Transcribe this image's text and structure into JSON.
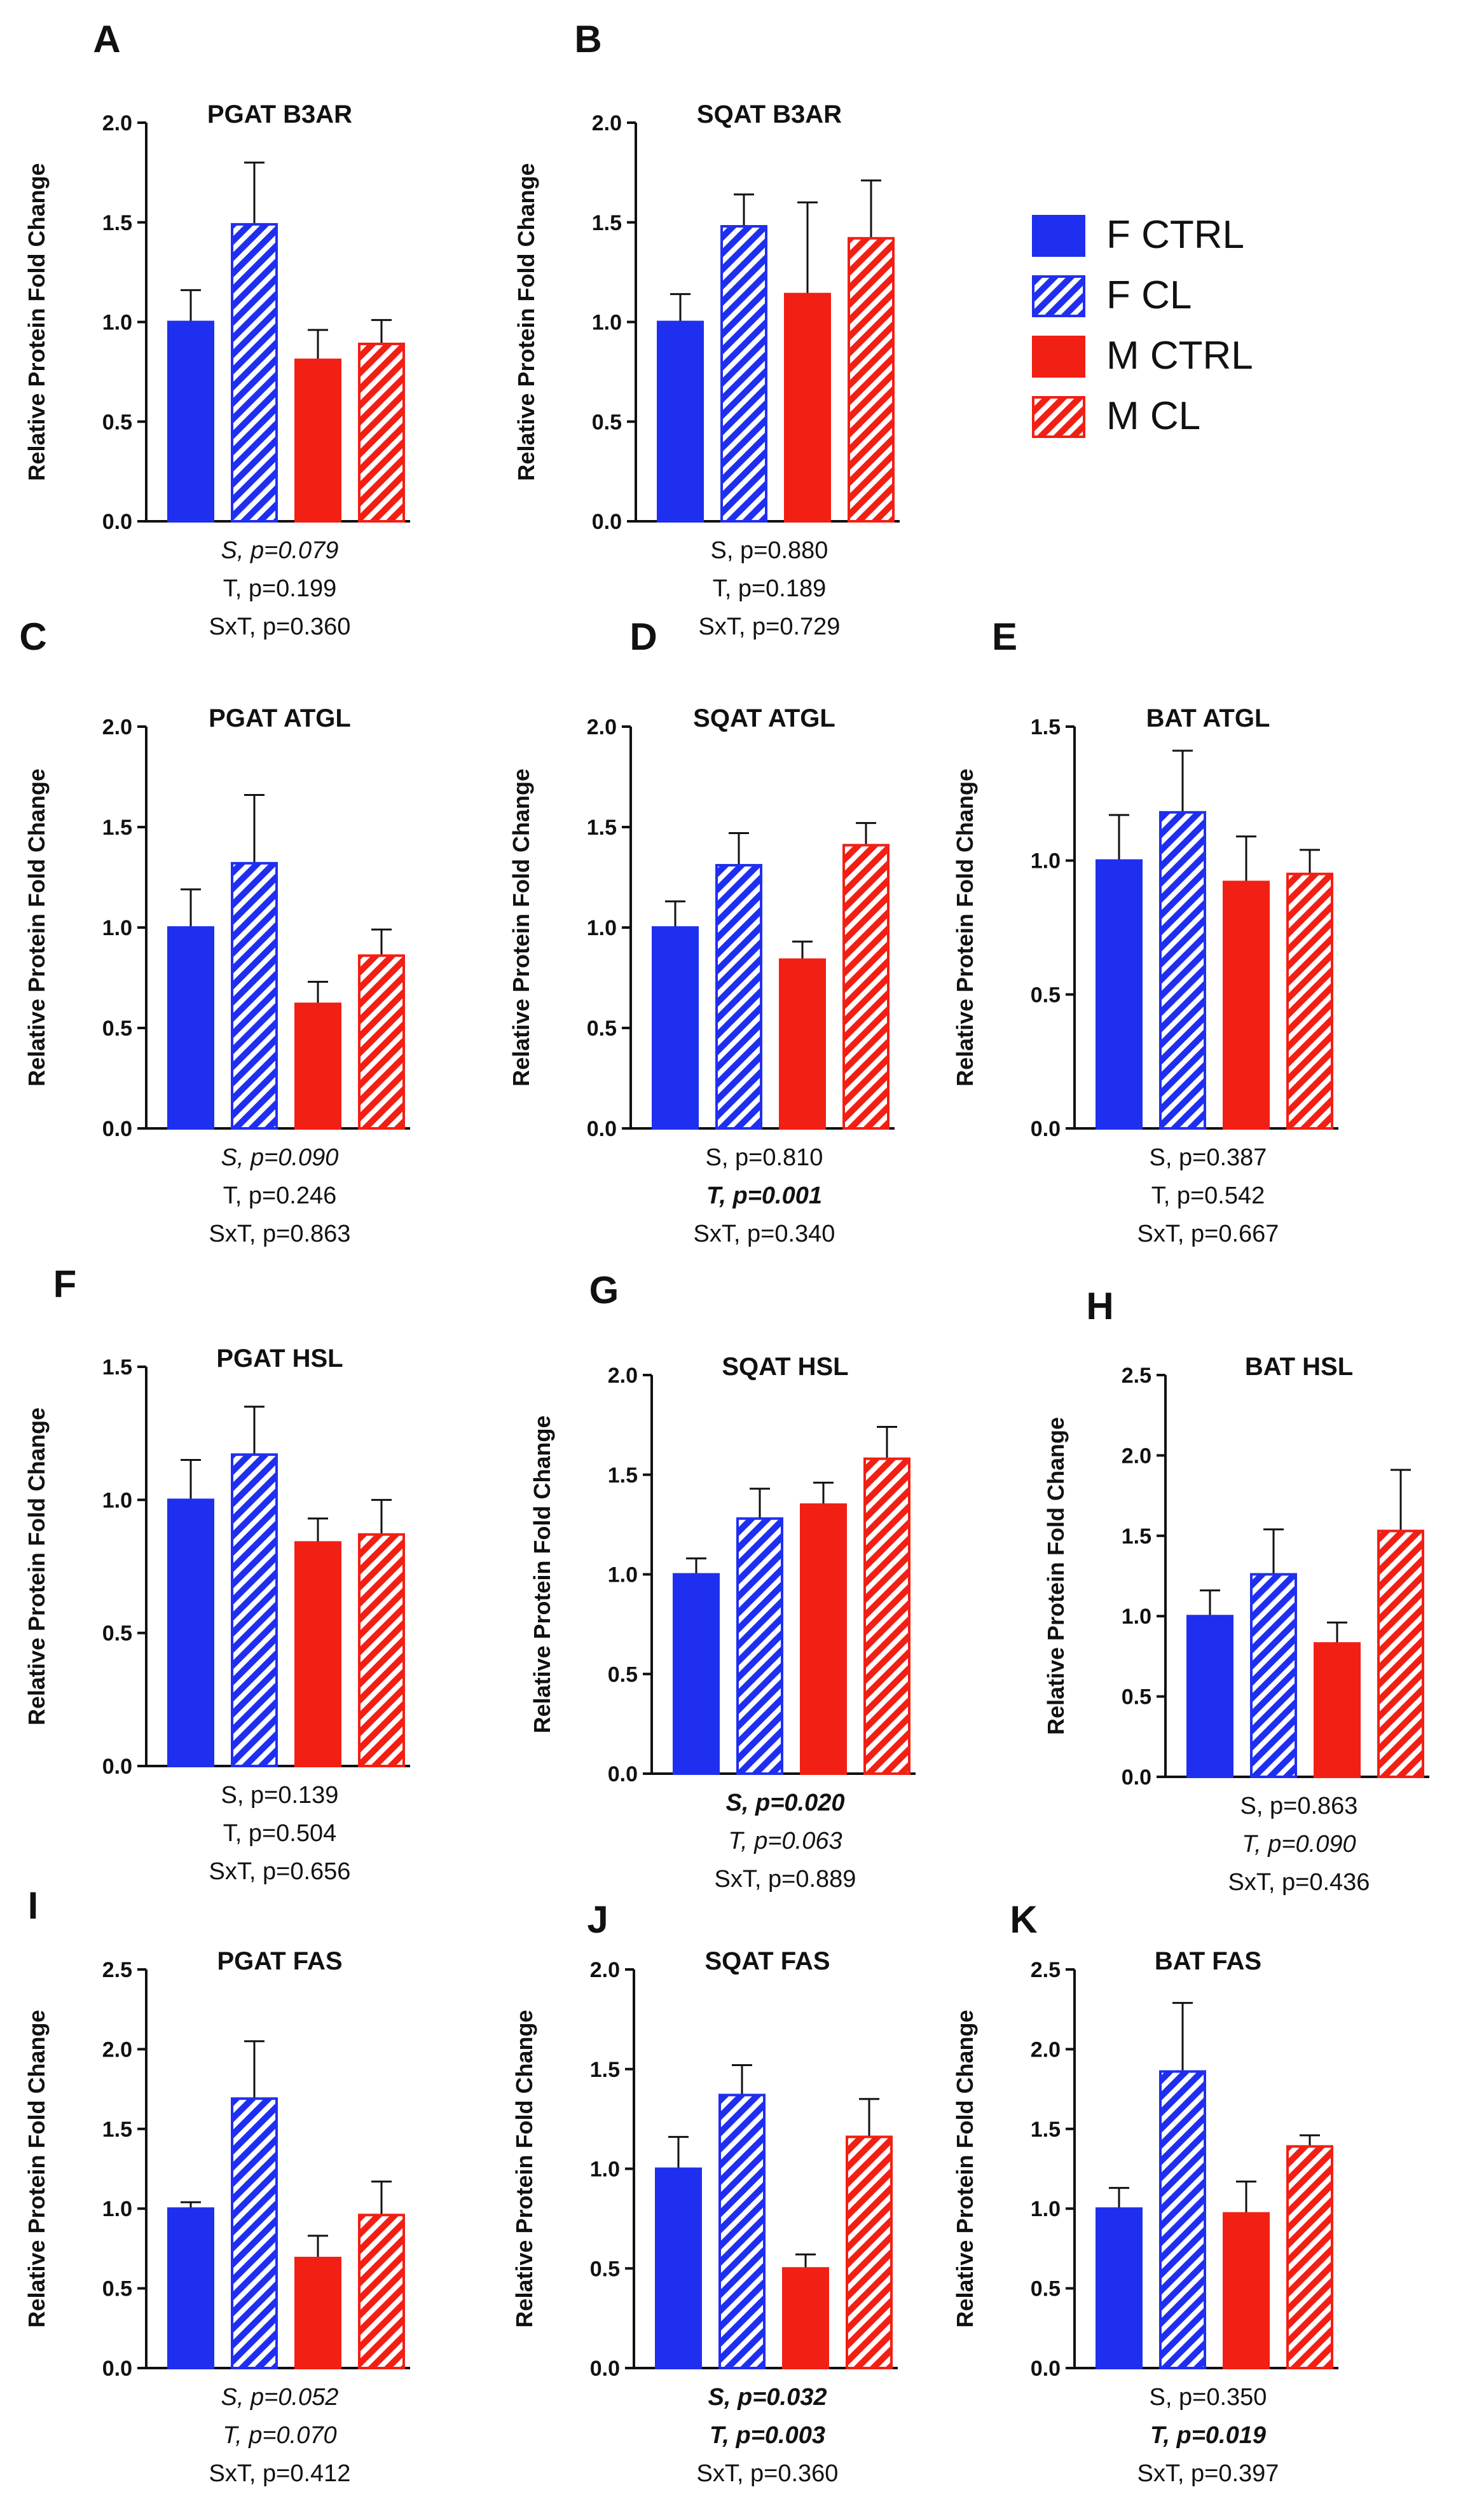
{
  "colors": {
    "f_ctrl": "#1f2ff0",
    "m_ctrl": "#f21f14",
    "axis": "#111111",
    "text": "#111111"
  },
  "legend": {
    "entries": [
      {
        "label": "F CTRL",
        "color": "#1f2ff0",
        "hatched": false
      },
      {
        "label": "F CL",
        "color": "#1f2ff0",
        "hatched": true
      },
      {
        "label": "M CTRL",
        "color": "#f21f14",
        "hatched": false
      },
      {
        "label": "M CL",
        "color": "#f21f14",
        "hatched": true
      }
    ]
  },
  "chart_data": [
    {
      "panel": "A",
      "type": "bar",
      "title": "PGAT B3AR",
      "ylabel": "Relative Protein Fold Change",
      "categories": [
        "F CTRL",
        "F CL",
        "M CTRL",
        "M CL"
      ],
      "values": [
        1.0,
        1.49,
        0.81,
        0.89
      ],
      "errors": [
        0.16,
        0.31,
        0.15,
        0.12
      ],
      "ylim": [
        0,
        2.0
      ],
      "yticks": [
        "0.0",
        "0.5",
        "1.0",
        "1.5",
        "2.0"
      ],
      "stats": [
        {
          "text": "S, p=0.079",
          "style": "italic"
        },
        {
          "text": "T, p=0.199",
          "style": "normal"
        },
        {
          "text": "SxT, p=0.360",
          "style": "normal"
        }
      ]
    },
    {
      "panel": "B",
      "type": "bar",
      "title": "SQAT B3AR",
      "ylabel": "Relative Protein Fold Change",
      "categories": [
        "F CTRL",
        "F CL",
        "M CTRL",
        "M CL"
      ],
      "values": [
        1.0,
        1.48,
        1.14,
        1.42
      ],
      "errors": [
        0.14,
        0.16,
        0.46,
        0.29
      ],
      "ylim": [
        0,
        2.0
      ],
      "yticks": [
        "0.0",
        "0.5",
        "1.0",
        "1.5",
        "2.0"
      ],
      "stats": [
        {
          "text": "S, p=0.880",
          "style": "normal"
        },
        {
          "text": "T, p=0.189",
          "style": "normal"
        },
        {
          "text": "SxT, p=0.729",
          "style": "normal"
        }
      ]
    },
    {
      "panel": "C",
      "type": "bar",
      "title": "PGAT ATGL",
      "ylabel": "Relative Protein Fold Change",
      "categories": [
        "F CTRL",
        "F CL",
        "M CTRL",
        "M CL"
      ],
      "values": [
        1.0,
        1.32,
        0.62,
        0.86
      ],
      "errors": [
        0.19,
        0.34,
        0.11,
        0.13
      ],
      "ylim": [
        0,
        2.0
      ],
      "yticks": [
        "0.0",
        "0.5",
        "1.0",
        "1.5",
        "2.0"
      ],
      "stats": [
        {
          "text": "S, p=0.090",
          "style": "italic"
        },
        {
          "text": "T, p=0.246",
          "style": "normal"
        },
        {
          "text": "SxT, p=0.863",
          "style": "normal"
        }
      ]
    },
    {
      "panel": "D",
      "type": "bar",
      "title": "SQAT ATGL",
      "ylabel": "Relative Protein Fold Change",
      "categories": [
        "F CTRL",
        "F CL",
        "M CTRL",
        "M CL"
      ],
      "values": [
        1.0,
        1.31,
        0.84,
        1.41
      ],
      "errors": [
        0.13,
        0.16,
        0.09,
        0.11
      ],
      "ylim": [
        0,
        2.0
      ],
      "yticks": [
        "0.0",
        "0.5",
        "1.0",
        "1.5",
        "2.0"
      ],
      "stats": [
        {
          "text": "S, p=0.810",
          "style": "normal"
        },
        {
          "text": "T, p=0.001",
          "style": "bold-italic"
        },
        {
          "text": "SxT, p=0.340",
          "style": "normal"
        }
      ]
    },
    {
      "panel": "E",
      "type": "bar",
      "title": "BAT ATGL",
      "ylabel": "Relative Protein Fold Change",
      "categories": [
        "F CTRL",
        "F CL",
        "M CTRL",
        "M CL"
      ],
      "values": [
        1.0,
        1.18,
        0.92,
        0.95
      ],
      "errors": [
        0.17,
        0.23,
        0.17,
        0.09
      ],
      "ylim": [
        0,
        1.5
      ],
      "yticks": [
        "0.0",
        "0.5",
        "1.0",
        "1.5"
      ],
      "stats": [
        {
          "text": "S, p=0.387",
          "style": "normal"
        },
        {
          "text": "T, p=0.542",
          "style": "normal"
        },
        {
          "text": "SxT, p=0.667",
          "style": "normal"
        }
      ]
    },
    {
      "panel": "F",
      "type": "bar",
      "title": "PGAT HSL",
      "ylabel": "Relative Protein Fold Change",
      "categories": [
        "F CTRL",
        "F CL",
        "M CTRL",
        "M CL"
      ],
      "values": [
        1.0,
        1.17,
        0.84,
        0.87
      ],
      "errors": [
        0.15,
        0.18,
        0.09,
        0.13
      ],
      "ylim": [
        0,
        1.5
      ],
      "yticks": [
        "0.0",
        "0.5",
        "1.0",
        "1.5"
      ],
      "stats": [
        {
          "text": "S, p=0.139",
          "style": "normal"
        },
        {
          "text": "T, p=0.504",
          "style": "normal"
        },
        {
          "text": "SxT, p=0.656",
          "style": "normal"
        }
      ]
    },
    {
      "panel": "G",
      "type": "bar",
      "title": "SQAT HSL",
      "ylabel": "Relative Protein Fold Change",
      "categories": [
        "F CTRL",
        "F CL",
        "M CTRL",
        "M CL"
      ],
      "values": [
        1.0,
        1.28,
        1.35,
        1.58
      ],
      "errors": [
        0.08,
        0.15,
        0.11,
        0.16
      ],
      "ylim": [
        0,
        2.0
      ],
      "yticks": [
        "0.0",
        "0.5",
        "1.0",
        "1.5",
        "2.0"
      ],
      "stats": [
        {
          "text": "S, p=0.020",
          "style": "bold-italic"
        },
        {
          "text": "T, p=0.063",
          "style": "italic"
        },
        {
          "text": "SxT, p=0.889",
          "style": "normal"
        }
      ]
    },
    {
      "panel": "H",
      "type": "bar",
      "title": "BAT HSL",
      "ylabel": "Relative Protein Fold Change",
      "categories": [
        "F CTRL",
        "F CL",
        "M CTRL",
        "M CL"
      ],
      "values": [
        1.0,
        1.26,
        0.83,
        1.53
      ],
      "errors": [
        0.16,
        0.28,
        0.13,
        0.38
      ],
      "ylim": [
        0,
        2.5
      ],
      "yticks": [
        "0.0",
        "0.5",
        "1.0",
        "1.5",
        "2.0",
        "2.5"
      ],
      "stats": [
        {
          "text": "S, p=0.863",
          "style": "normal"
        },
        {
          "text": "T, p=0.090",
          "style": "italic"
        },
        {
          "text": "SxT, p=0.436",
          "style": "normal"
        }
      ]
    },
    {
      "panel": "I",
      "type": "bar",
      "title": "PGAT FAS",
      "ylabel": "Relative Protein Fold Change",
      "categories": [
        "F CTRL",
        "F CL",
        "M CTRL",
        "M CL"
      ],
      "values": [
        1.0,
        1.69,
        0.69,
        0.96
      ],
      "errors": [
        0.04,
        0.36,
        0.14,
        0.21
      ],
      "ylim": [
        0,
        2.5
      ],
      "yticks": [
        "0.0",
        "0.5",
        "1.0",
        "1.5",
        "2.0",
        "2.5"
      ],
      "stats": [
        {
          "text": "S, p=0.052",
          "style": "italic"
        },
        {
          "text": "T, p=0.070",
          "style": "italic"
        },
        {
          "text": "SxT, p=0.412",
          "style": "normal"
        }
      ]
    },
    {
      "panel": "J",
      "type": "bar",
      "title": "SQAT FAS",
      "ylabel": "Relative Protein Fold Change",
      "categories": [
        "F CTRL",
        "F CL",
        "M CTRL",
        "M CL"
      ],
      "values": [
        1.0,
        1.37,
        0.5,
        1.16
      ],
      "errors": [
        0.16,
        0.15,
        0.07,
        0.19
      ],
      "ylim": [
        0,
        2.0
      ],
      "yticks": [
        "0.0",
        "0.5",
        "1.0",
        "1.5",
        "2.0"
      ],
      "stats": [
        {
          "text": "S, p=0.032",
          "style": "bold-italic"
        },
        {
          "text": "T, p=0.003",
          "style": "bold-italic"
        },
        {
          "text": "SxT, p=0.360",
          "style": "normal"
        }
      ]
    },
    {
      "panel": "K",
      "type": "bar",
      "title": "BAT FAS",
      "ylabel": "Relative Protein Fold Change",
      "categories": [
        "F CTRL",
        "F CL",
        "M CTRL",
        "M CL"
      ],
      "values": [
        1.0,
        1.86,
        0.97,
        1.39
      ],
      "errors": [
        0.13,
        0.43,
        0.2,
        0.07
      ],
      "ylim": [
        0,
        2.5
      ],
      "yticks": [
        "0.0",
        "0.5",
        "1.0",
        "1.5",
        "2.0",
        "2.5"
      ],
      "stats": [
        {
          "text": "S, p=0.350",
          "style": "normal"
        },
        {
          "text": "T, p=0.019",
          "style": "bold-italic"
        },
        {
          "text": "SxT, p=0.397",
          "style": "normal"
        }
      ]
    }
  ]
}
